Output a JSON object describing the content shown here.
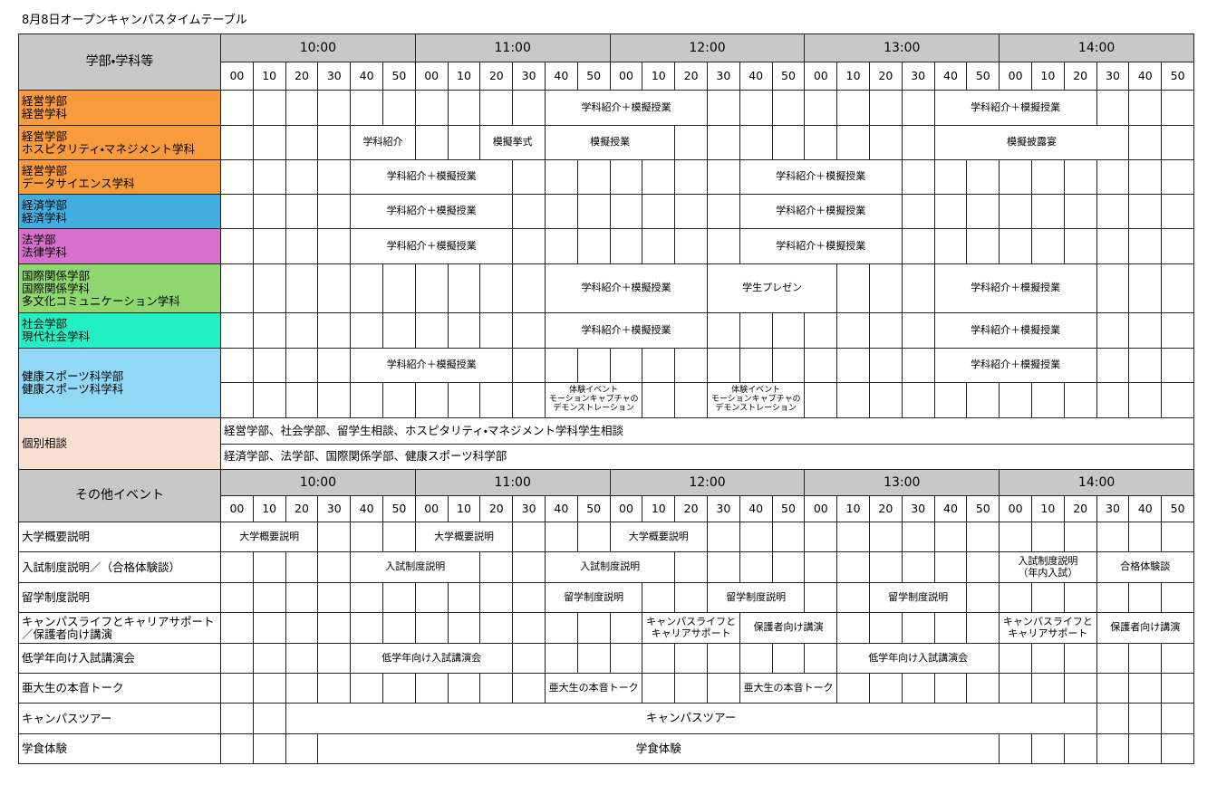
{
  "title": "8月8日オープンキャンパスタイムテーブル",
  "hours": [
    "10:00",
    "11:00",
    "12:00",
    "13:00",
    "14:00"
  ],
  "minutes": [
    "00",
    "10",
    "20",
    "30",
    "40",
    "50"
  ],
  "departments": {
    "header": "学部・学科等",
    "rows": [
      {
        "name": "経営学部\n経営学科",
        "events": [
          "学科紹介＋模擬授業",
          "学科紹介＋模擬授業"
        ]
      },
      {
        "name": "経営学部\nホスピタリティ・マネジメント学科",
        "events": [
          "学科紹介",
          "模擬挙式",
          "模擬授業",
          "模擬披露宴"
        ]
      },
      {
        "name": "経営学部\nデータサイエンス学科",
        "events": [
          "学科紹介＋模擬授業",
          "学科紹介＋模擬授業"
        ]
      },
      {
        "name": "経済学部\n経済学科",
        "events": [
          "学科紹介＋模擬授業",
          "学科紹介＋模擬授業"
        ]
      },
      {
        "name": "法学部\n法律学科",
        "events": [
          "学科紹介＋模擬授業",
          "学科紹介＋模擬授業"
        ]
      },
      {
        "name": "国際関係学部\n国際関係学科\n多文化コミュニケーション学科",
        "events": [
          "学科紹介＋模擬授業",
          "学生プレゼン",
          "学科紹介＋模擬授業"
        ]
      },
      {
        "name": "社会学部\n現代社会学科",
        "events": [
          "学科紹介＋模擬授業",
          "学科紹介＋模擬授業"
        ]
      },
      {
        "name": "健康スポーツ科学部\n健康スポーツ科学科",
        "events": [
          "学科紹介＋模擬授業",
          "学科紹介＋模擬授業"
        ],
        "sub_events": [
          "体験イベント\nモーションキャプチャの\nデモンストレーション",
          "体験イベント\nモーションキャプチャの\nデモンストレーション"
        ]
      }
    ]
  },
  "consultation": {
    "name": "個別相談",
    "lines": [
      "経営学部、社会学部、留学生相談、ホスピタリティ・マネジメント学科学生相談",
      "経済学部、法学部、国際関係学部、健康スポーツ科学部"
    ]
  },
  "other_events": {
    "header": "その他イベント",
    "rows": [
      {
        "name": "大学概要説明",
        "events": [
          "大学概要説明",
          "大学概要説明",
          "大学概要説明"
        ]
      },
      {
        "name": "入試制度説明／（合格体験談）",
        "events": [
          "入試制度説明",
          "入試制度説明",
          "入試制度説明\n（年内入試）",
          "合格体験談"
        ]
      },
      {
        "name": "留学制度説明",
        "events": [
          "留学制度説明",
          "留学制度説明",
          "留学制度説明"
        ]
      },
      {
        "name": "キャンパスライフとキャリアサポート\n／保護者向け講演",
        "events": [
          "キャンパスライフと\nキャリアサポート",
          "保護者向け講演",
          "キャンパスライフと\nキャリアサポート",
          "保護者向け講演"
        ]
      },
      {
        "name": "低学年向け入試講演会",
        "events": [
          "低学年向け入試講演会",
          "低学年向け入試講演会"
        ]
      },
      {
        "name": "亜大生の本音トーク",
        "events": [
          "亜大生の本音トーク",
          "亜大生の本音トーク"
        ]
      },
      {
        "name": "キャンパスツアー",
        "events": [
          "キャンパスツアー"
        ]
      },
      {
        "name": "学食体験",
        "events": [
          "学食体験"
        ]
      }
    ]
  }
}
